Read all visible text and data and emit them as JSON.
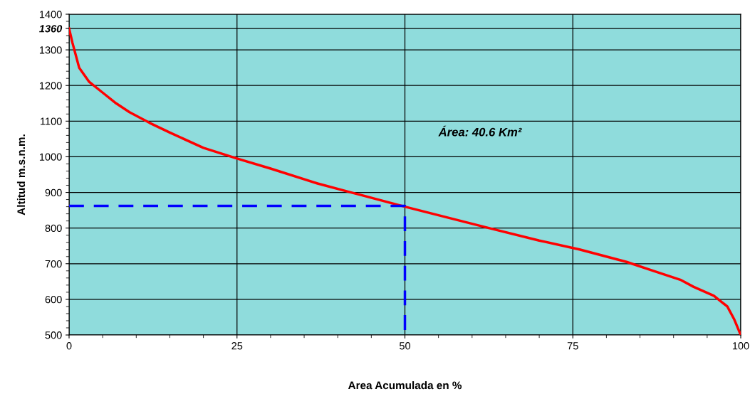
{
  "chart_data": {
    "type": "line",
    "xlabel": "Area Acumulada en %",
    "ylabel": "Altitud m.s.n.m.",
    "xlim": [
      0,
      100
    ],
    "xticks": [
      0,
      25,
      50,
      75,
      100
    ],
    "ylim": [
      500,
      1400
    ],
    "yticks": [
      500,
      600,
      700,
      800,
      900,
      1000,
      1100,
      1200,
      1300,
      {
        "value": 1360,
        "label": "1360"
      },
      1400
    ],
    "grid": true,
    "legend": false,
    "annotations": [
      "Área: 40.6 Km²"
    ],
    "series": [
      {
        "color": "#ff0000",
        "line_style": "solid",
        "x": [
          0,
          0.5,
          1.5,
          3,
          5,
          7,
          9,
          12,
          15,
          20,
          25,
          30,
          37,
          42,
          50,
          62.5,
          70,
          76,
          83,
          87,
          91,
          93,
          96,
          98,
          99,
          100
        ],
        "values": [
          1360,
          1320,
          1250,
          1210,
          1180,
          1150,
          1125,
          1095,
          1068,
          1025,
          995,
          967,
          925,
          900,
          860,
          800,
          765,
          740,
          705,
          680,
          655,
          635,
          610,
          580,
          545,
          500
        ]
      },
      {
        "color": "#0000ff",
        "line_style": "dashed",
        "x": [
          0,
          50,
          50
        ],
        "values": [
          862,
          862,
          500
        ]
      }
    ]
  }
}
